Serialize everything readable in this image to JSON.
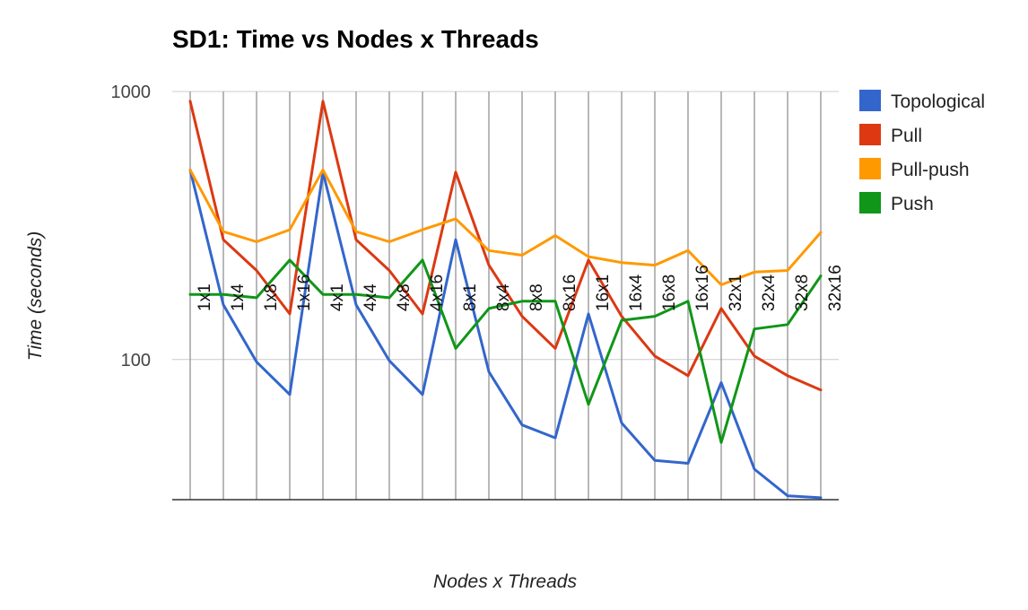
{
  "chart_data": {
    "type": "line",
    "title": "SD1: Time vs Nodes x Threads",
    "xlabel": "Nodes x Threads",
    "ylabel": "Time (seconds)",
    "yscale": "log",
    "ylim": [
      30,
      1000
    ],
    "yticks": [
      100,
      1000
    ],
    "ytick_labels": [
      "100",
      "1000"
    ],
    "grid": true,
    "legend_position": "right",
    "categories": [
      "1x1",
      "1x4",
      "1x8",
      "1x16",
      "4x1",
      "4x4",
      "4x8",
      "4x16",
      "8x1",
      "8x4",
      "8x8",
      "8x16",
      "16x1",
      "16x4",
      "16x8",
      "16x16",
      "32x1",
      "32x4",
      "32x8",
      "32x16"
    ],
    "series": [
      {
        "name": "Topological",
        "color": "#3366cc",
        "values": [
          510,
          160,
          98,
          74,
          500,
          160,
          99,
          74,
          280,
          90,
          57,
          51,
          148,
          58,
          42,
          41,
          82,
          39,
          31,
          30.5
        ]
      },
      {
        "name": "Pull",
        "color": "#dc3912",
        "values": [
          920,
          280,
          215,
          148,
          920,
          280,
          215,
          148,
          500,
          225,
          145,
          110,
          235,
          145,
          103,
          87,
          155,
          103,
          87,
          77
        ]
      },
      {
        "name": "Pull-push",
        "color": "#ff9900",
        "values": [
          510,
          300,
          275,
          305,
          510,
          300,
          275,
          305,
          335,
          255,
          245,
          290,
          242,
          230,
          225,
          255,
          190,
          212,
          215,
          298
        ]
      },
      {
        "name": "Push",
        "color": "#109618",
        "values": [
          175,
          175,
          170,
          235,
          175,
          175,
          170,
          235,
          110,
          155,
          165,
          165,
          68,
          140,
          145,
          165,
          49,
          130,
          135,
          205
        ]
      }
    ]
  }
}
